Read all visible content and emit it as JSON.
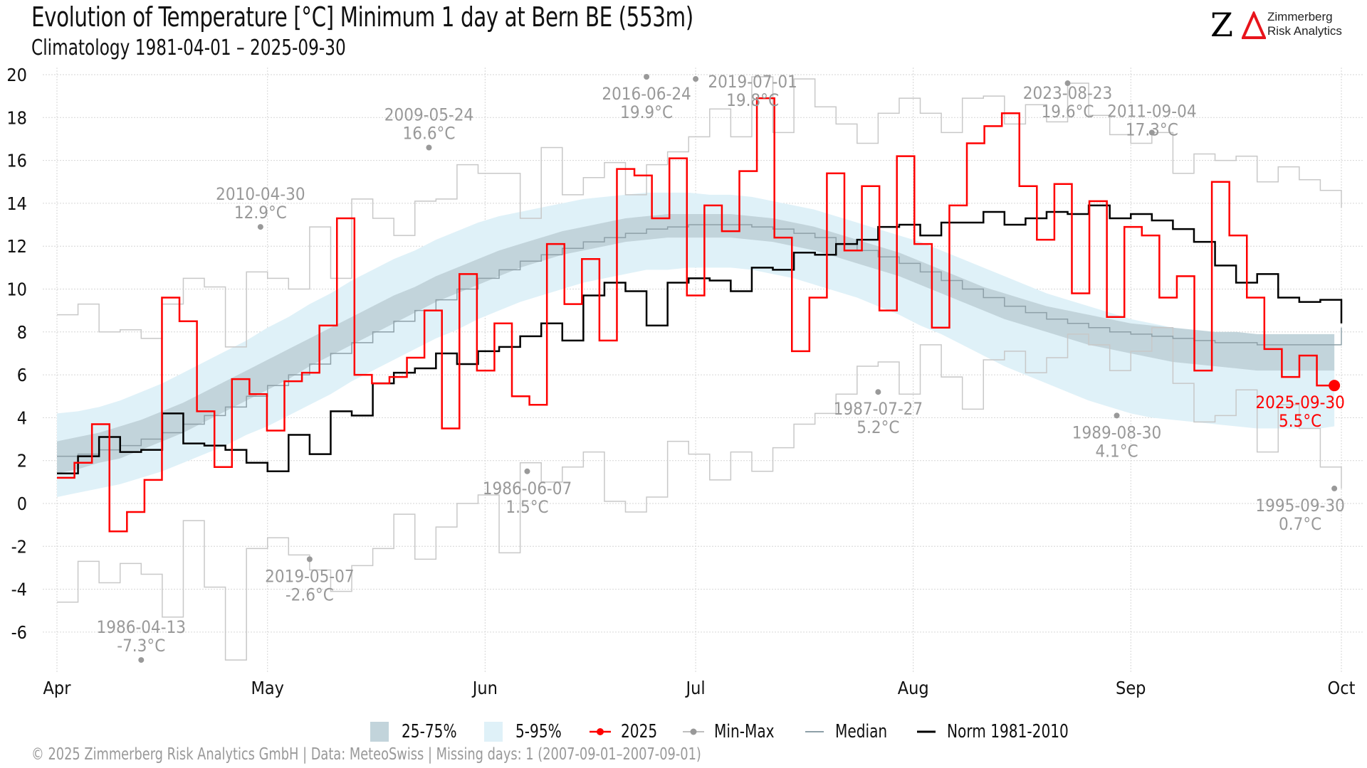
{
  "header": {
    "title": "Evolution of Temperature [°C] Minimum 1 day at Bern  BE (553m)",
    "subtitle": "Climatology 1981-04-01 – 2025-09-30"
  },
  "logo": {
    "mark": "Z",
    "line1": "Zimmerberg",
    "line2": "Risk Analytics",
    "accent_color": "#e8141b"
  },
  "footer": {
    "text": "©  2025 Zimmerberg Risk Analytics GmbH | Data: MeteoSwiss | Missing days: 1 (2007-09-01–2007-09-01)"
  },
  "legend": {
    "items": [
      {
        "label": "25-75%",
        "kind": "fill",
        "color": "#c2d4db"
      },
      {
        "label": "5-95%",
        "kind": "fill",
        "color": "#dff1f8"
      },
      {
        "label": "2025",
        "kind": "line-dot",
        "color": "#ff0000"
      },
      {
        "label": "Min-Max",
        "kind": "line-dot",
        "color": "#999999"
      },
      {
        "label": "Median",
        "kind": "line",
        "color": "#8ea0a8"
      },
      {
        "label": "Norm 1981-2010",
        "kind": "line",
        "color": "#000000"
      }
    ]
  },
  "chart_data": {
    "type": "line",
    "title": "Evolution of Temperature [°C] Minimum 1 day at Bern  BE (553m)",
    "subtitle": "Climatology 1981-04-01 – 2025-09-30",
    "xlabel": "",
    "ylabel": "",
    "x_unit": "day since Apr 1",
    "xlim": [
      0,
      183
    ],
    "ylim": [
      -7.8,
      20.3
    ],
    "y_ticks": [
      20,
      18,
      16,
      14,
      12,
      10,
      8,
      6,
      4,
      2,
      0,
      -2,
      -4,
      -6
    ],
    "x_ticks": [
      {
        "label": "Apr",
        "day": 0
      },
      {
        "label": "May",
        "day": 30
      },
      {
        "label": "Jun",
        "day": 61
      },
      {
        "label": "Jul",
        "day": 91
      },
      {
        "label": "Aug",
        "day": 122
      },
      {
        "label": "Sep",
        "day": 153
      },
      {
        "label": "Oct",
        "day": 183
      }
    ],
    "grid": true,
    "legend_position": "bottom",
    "step_days": 3,
    "series": [
      {
        "name": "5-95% low",
        "values": [
          0.3,
          0.5,
          0.7,
          0.9,
          1.2,
          1.5,
          1.9,
          2.3,
          2.7,
          3.2,
          3.6,
          4.1,
          4.6,
          5.1,
          5.7,
          6.2,
          6.7,
          7.2,
          7.7,
          8.1,
          8.6,
          9.0,
          9.4,
          9.7,
          10.0,
          10.3,
          10.5,
          10.7,
          10.9,
          10.9,
          11.0,
          11.0,
          11.0,
          10.9,
          10.7,
          10.5,
          10.2,
          9.9,
          9.6,
          9.2,
          8.8,
          8.3,
          7.9,
          7.4,
          6.9,
          6.4,
          6.0,
          5.6,
          5.2,
          4.8,
          4.5,
          4.2,
          4.0,
          3.9,
          3.8,
          3.7,
          3.6,
          3.5,
          3.5,
          3.5,
          3.5,
          3.6
        ]
      },
      {
        "name": "5-95% high",
        "values": [
          4.2,
          4.3,
          4.5,
          4.8,
          5.2,
          5.6,
          6.1,
          6.6,
          7.1,
          7.6,
          8.2,
          8.7,
          9.3,
          9.8,
          10.4,
          10.9,
          11.4,
          11.8,
          12.3,
          12.7,
          13.1,
          13.4,
          13.6,
          13.8,
          14.0,
          14.2,
          14.3,
          14.4,
          14.5,
          14.5,
          14.5,
          14.4,
          14.4,
          14.3,
          14.1,
          13.9,
          13.7,
          13.4,
          13.1,
          12.8,
          12.5,
          12.2,
          11.8,
          11.4,
          11.0,
          10.6,
          10.2,
          9.8,
          9.5,
          9.2,
          8.9,
          8.6,
          8.4,
          8.2,
          8.0,
          7.9,
          7.8,
          7.7,
          7.6,
          7.5,
          7.5,
          7.5
        ]
      },
      {
        "name": "25-75% low",
        "values": [
          1.4,
          1.6,
          1.9,
          2.1,
          2.5,
          2.9,
          3.3,
          3.8,
          4.3,
          4.8,
          5.3,
          5.8,
          6.4,
          6.9,
          7.4,
          7.9,
          8.4,
          8.9,
          9.4,
          9.8,
          10.2,
          10.6,
          11.0,
          11.3,
          11.6,
          11.8,
          12.0,
          12.2,
          12.3,
          12.4,
          12.4,
          12.4,
          12.4,
          12.3,
          12.2,
          12.0,
          11.8,
          11.5,
          11.2,
          10.9,
          10.6,
          10.2,
          9.8,
          9.4,
          9.0,
          8.6,
          8.3,
          8.0,
          7.7,
          7.4,
          7.2,
          7.0,
          6.8,
          6.6,
          6.5,
          6.4,
          6.3,
          6.2,
          6.2,
          6.2,
          6.2,
          6.2
        ]
      },
      {
        "name": "25-75% high",
        "values": [
          2.9,
          3.1,
          3.3,
          3.6,
          3.9,
          4.3,
          4.7,
          5.2,
          5.7,
          6.2,
          6.7,
          7.2,
          7.7,
          8.2,
          8.7,
          9.2,
          9.7,
          10.1,
          10.6,
          11.0,
          11.4,
          11.8,
          12.1,
          12.4,
          12.7,
          12.9,
          13.1,
          13.3,
          13.4,
          13.5,
          13.5,
          13.5,
          13.5,
          13.4,
          13.3,
          13.1,
          12.9,
          12.6,
          12.3,
          12.0,
          11.7,
          11.3,
          10.9,
          10.5,
          10.1,
          9.8,
          9.5,
          9.2,
          9.0,
          8.8,
          8.6,
          8.4,
          8.3,
          8.2,
          8.1,
          8.0,
          8.0,
          7.9,
          7.9,
          7.9,
          7.9,
          7.9
        ]
      },
      {
        "name": "Median",
        "values": [
          2.2,
          2.3,
          2.5,
          2.7,
          3.0,
          3.3,
          3.7,
          4.1,
          4.5,
          5.0,
          5.5,
          6.0,
          6.5,
          7.0,
          7.5,
          8.0,
          8.5,
          9.0,
          9.5,
          10.0,
          10.5,
          10.9,
          11.3,
          11.6,
          11.9,
          12.2,
          12.4,
          12.6,
          12.8,
          12.9,
          13.0,
          13.0,
          13.0,
          12.9,
          12.8,
          12.6,
          12.4,
          12.1,
          11.8,
          11.5,
          11.2,
          10.8,
          10.4,
          10.0,
          9.6,
          9.2,
          8.9,
          8.6,
          8.4,
          8.2,
          8.0,
          7.9,
          7.8,
          7.7,
          7.6,
          7.5,
          7.5,
          7.4,
          7.4,
          7.4,
          7.4,
          8.2
        ]
      },
      {
        "name": "Norm 1981-2010",
        "values": [
          1.4,
          2.2,
          3.1,
          2.4,
          2.5,
          4.2,
          2.8,
          2.7,
          2.5,
          1.9,
          1.5,
          3.2,
          2.3,
          4.3,
          4.1,
          5.6,
          6.1,
          6.3,
          7.0,
          6.5,
          7.1,
          7.3,
          7.8,
          8.4,
          7.6,
          9.7,
          10.3,
          9.9,
          8.3,
          10.3,
          10.5,
          10.4,
          9.9,
          11.0,
          10.9,
          11.7,
          11.6,
          12.1,
          12.3,
          12.9,
          13.0,
          12.5,
          13.1,
          13.1,
          13.6,
          13.0,
          13.3,
          13.6,
          13.5,
          13.9,
          13.3,
          13.5,
          13.2,
          12.8,
          12.2,
          11.1,
          10.3,
          10.7,
          9.6,
          9.4,
          9.5,
          8.4
        ]
      },
      {
        "name": "Min",
        "values": [
          -4.6,
          -2.7,
          -3.7,
          -2.8,
          -3.3,
          -5.3,
          -0.8,
          -3.9,
          -7.3,
          -2.1,
          -1.6,
          -2.4,
          -3.1,
          -4.1,
          -2.9,
          -2.1,
          -0.5,
          -2.6,
          -1.1,
          0.0,
          0.4,
          -2.3,
          1.9,
          1.0,
          1.7,
          2.4,
          0.1,
          -0.4,
          0.3,
          2.9,
          2.3,
          1.1,
          2.4,
          1.5,
          2.6,
          3.7,
          4.2,
          5.1,
          6.4,
          6.6,
          5.1,
          7.4,
          5.9,
          4.4,
          6.7,
          7.1,
          6.1,
          6.8,
          7.9,
          7.4,
          6.2,
          7.1,
          8.2,
          5.6,
          3.8,
          4.1,
          5.3,
          2.4,
          4.6,
          3.5,
          1.7,
          0.7
        ]
      },
      {
        "name": "Max",
        "values": [
          8.8,
          9.3,
          8.0,
          8.1,
          7.7,
          9.3,
          10.5,
          10.1,
          7.3,
          10.8,
          10.5,
          10.0,
          12.9,
          10.5,
          14.2,
          13.3,
          12.5,
          14.1,
          14.2,
          15.8,
          15.4,
          15.4,
          13.3,
          16.6,
          14.4,
          15.2,
          15.9,
          14.4,
          15.8,
          16.4,
          17.1,
          18.4,
          17.1,
          19.9,
          17.3,
          19.8,
          18.5,
          17.7,
          16.8,
          18.2,
          18.9,
          18.2,
          17.3,
          18.9,
          19.0,
          17.7,
          18.6,
          17.8,
          19.6,
          18.1,
          17.2,
          16.8,
          17.3,
          15.4,
          16.3,
          16.0,
          16.2,
          15.0,
          15.7,
          15.1,
          14.6,
          13.8
        ]
      },
      {
        "name": "2025",
        "values": [
          1.2,
          1.9,
          3.7,
          -1.3,
          -0.4,
          1.1,
          9.6,
          8.5,
          4.3,
          1.7,
          5.8,
          5.1,
          3.4,
          5.7,
          6.1,
          8.3,
          13.3,
          6.0,
          5.6,
          5.9,
          6.8,
          9.0,
          3.5,
          10.7,
          6.2,
          8.4,
          5.0,
          4.6,
          12.1,
          9.3,
          11.4,
          7.6,
          15.6,
          15.3,
          13.3,
          16.1,
          9.7,
          13.9,
          12.7,
          15.5,
          18.9,
          12.4,
          7.1,
          9.6,
          15.4,
          11.8,
          14.8,
          9.0,
          16.2,
          12.1,
          8.2,
          13.9,
          16.8,
          17.6,
          18.2,
          14.8,
          12.3,
          14.9,
          9.8,
          14.1,
          8.7,
          12.9,
          12.5,
          9.6,
          10.6,
          6.2,
          15.0,
          12.5,
          9.6,
          7.2,
          5.9,
          6.9,
          5.5
        ]
      },
      {
        "name": "2025 daily end",
        "values": [
          13.9,
          9.0,
          5.2,
          14.2,
          8.6,
          5.9,
          6.8,
          5.5
        ]
      }
    ],
    "annotations": [
      {
        "label": "1986-04-13",
        "value": "-7.3°C",
        "day": 12,
        "y": -7.3,
        "type": "min"
      },
      {
        "label": "2010-04-30",
        "value": "12.9°C",
        "day": 29,
        "y": 12.9,
        "type": "max"
      },
      {
        "label": "2019-05-07",
        "value": "-2.6°C",
        "day": 36,
        "y": -2.6,
        "type": "min"
      },
      {
        "label": "2009-05-24",
        "value": "16.6°C",
        "day": 53,
        "y": 16.6,
        "type": "max"
      },
      {
        "label": "1986-06-07",
        "value": "1.5°C",
        "day": 67,
        "y": 1.5,
        "type": "min"
      },
      {
        "label": "2016-06-24",
        "value": "19.9°C",
        "day": 84,
        "y": 19.9,
        "type": "max"
      },
      {
        "label": "2019-07-01",
        "value": "19.8°C",
        "day": 91,
        "y": 19.8,
        "type": "max"
      },
      {
        "label": "1987-07-27",
        "value": "5.2°C",
        "day": 117,
        "y": 5.2,
        "type": "min"
      },
      {
        "label": "2023-08-23",
        "value": "19.6°C",
        "day": 144,
        "y": 19.6,
        "type": "max"
      },
      {
        "label": "1989-08-30",
        "value": "4.1°C",
        "day": 151,
        "y": 4.1,
        "type": "min"
      },
      {
        "label": "2011-09-04",
        "value": "17.3°C",
        "day": 156,
        "y": 17.3,
        "type": "max"
      },
      {
        "label": "1995-09-30",
        "value": "0.7°C",
        "day": 182,
        "y": 0.7,
        "type": "min"
      },
      {
        "label": "2025-09-30",
        "value": "5.5°C",
        "day": 182,
        "y": 5.5,
        "type": "current"
      }
    ]
  }
}
